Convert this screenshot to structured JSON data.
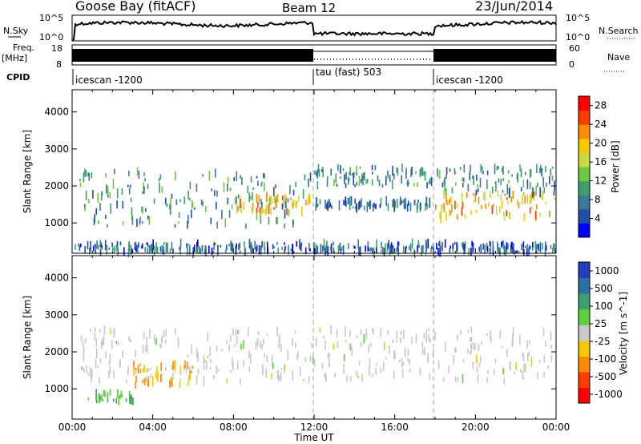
{
  "header": {
    "station": "Goose Bay (fitACF)",
    "beam": "Beam 12",
    "date": "23/Jun/2014"
  },
  "panels": {
    "nsky_label": "N.Sky",
    "nsky_ticks": [
      "10^5",
      "10^0"
    ],
    "nsearch_label": "N.Search",
    "nsearch_ticks": [
      "10^5",
      "10^0"
    ],
    "freq_label_1": "Freq.",
    "freq_label_2": "[MHz]",
    "freq_ticks": [
      "18",
      "8"
    ],
    "nave_label": "Nave",
    "nave_ticks": [
      "60",
      "0"
    ],
    "cpid_label": "CPID",
    "cpid_segments": [
      {
        "label": "icescan -1200",
        "start_hour": 0
      },
      {
        "label": "tau (fast) 503",
        "start_hour": 12
      },
      {
        "label": "icescan -1200",
        "start_hour": 18
      }
    ]
  },
  "chart_data": [
    {
      "type": "heatmap",
      "title": "",
      "xlabel": "Time UT",
      "ylabel": "Slant Range [km]",
      "xticks": [
        "00:00",
        "04:00",
        "08:00",
        "12:00",
        "16:00",
        "20:00",
        "00:00"
      ],
      "xlim_hours": [
        0,
        24
      ],
      "yticks": [
        "1000",
        "2000",
        "3000",
        "4000"
      ],
      "ylim": [
        180,
        4600
      ],
      "colorbar": {
        "label": "Power [dB]",
        "ticks": [
          "4",
          "8",
          "12",
          "16",
          "20",
          "24",
          "28"
        ],
        "range": [
          0,
          30
        ],
        "colors": [
          "#0000ff",
          "#1f4fa8",
          "#3a7a9a",
          "#3f9f6a",
          "#6fc83f",
          "#c8dc3f",
          "#f5c800",
          "#ff8c00",
          "#ff3c00",
          "#ff0000"
        ]
      },
      "echo_bands": [
        {
          "t_start": 0.3,
          "t_end": 11.9,
          "range_lo": 900,
          "range_hi": 2400,
          "level": 9
        },
        {
          "t_start": 8.0,
          "t_end": 11.9,
          "range_lo": 1300,
          "range_hi": 1700,
          "level": 20
        },
        {
          "t_start": 12.0,
          "t_end": 17.9,
          "range_lo": 2000,
          "range_hi": 2500,
          "level": 8
        },
        {
          "t_start": 12.0,
          "t_end": 17.9,
          "range_lo": 1400,
          "range_hi": 1600,
          "level": 7
        },
        {
          "t_start": 18.0,
          "t_end": 24.0,
          "range_lo": 1100,
          "range_hi": 1800,
          "level": 20
        },
        {
          "t_start": 18.0,
          "t_end": 24.0,
          "range_lo": 1800,
          "range_hi": 2500,
          "level": 8
        },
        {
          "t_start": 0.0,
          "t_end": 24.0,
          "range_lo": 200,
          "range_hi": 450,
          "level": 6
        }
      ]
    },
    {
      "type": "heatmap",
      "title": "",
      "xlabel": "Time UT",
      "ylabel": "Slant Range [km]",
      "xticks": [
        "00:00",
        "04:00",
        "08:00",
        "12:00",
        "16:00",
        "20:00",
        "00:00"
      ],
      "xlim_hours": [
        0,
        24
      ],
      "yticks": [
        "1000",
        "2000",
        "3000",
        "4000"
      ],
      "ylim": [
        180,
        4600
      ],
      "colorbar": {
        "label": "Velocity [m s^-1]",
        "ticks": [
          "1000",
          "500",
          "100",
          "25",
          "-25",
          "-100",
          "-500",
          "-1000"
        ],
        "colors": [
          "#1f3fbf",
          "#2f6fa8",
          "#3f9f6a",
          "#5fcf3f",
          "#c8c8c8",
          "#f5c800",
          "#ff8c00",
          "#ff3c00",
          "#ff0000"
        ]
      },
      "echo_bands": [
        {
          "t_start": 0.3,
          "t_end": 24.0,
          "range_lo": 1200,
          "range_hi": 2600,
          "velocity": 0
        },
        {
          "t_start": 3.0,
          "t_end": 6.0,
          "range_lo": 1100,
          "range_hi": 1700,
          "velocity": -300
        },
        {
          "t_start": 0.5,
          "t_end": 3.0,
          "range_lo": 650,
          "range_hi": 900,
          "velocity": 150
        }
      ]
    }
  ]
}
